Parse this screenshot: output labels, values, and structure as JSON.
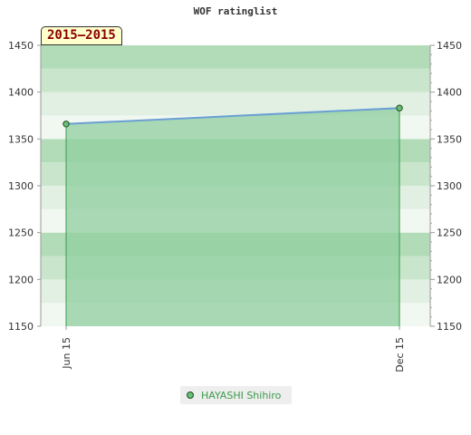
{
  "chart_data": {
    "type": "area",
    "title": "WOF ratinglist",
    "period": "2015–2015",
    "x_ticks": [
      "Jun 15",
      "Dec 15"
    ],
    "ylim": [
      1150,
      1450
    ],
    "y_ticks": [
      1150,
      1200,
      1250,
      1300,
      1350,
      1400,
      1450
    ],
    "series": [
      {
        "name": "HAYASHI Shihiro",
        "x": [
          "Jun 15",
          "Dec 15"
        ],
        "values": [
          1366,
          1383
        ]
      }
    ],
    "colors": {
      "line": "#6a9fd4",
      "fill": "#8fcf9f",
      "marker": "#6abf7b",
      "legend_text": "#3a9a4a"
    },
    "legend_position": "bottom-center",
    "grid": true
  }
}
